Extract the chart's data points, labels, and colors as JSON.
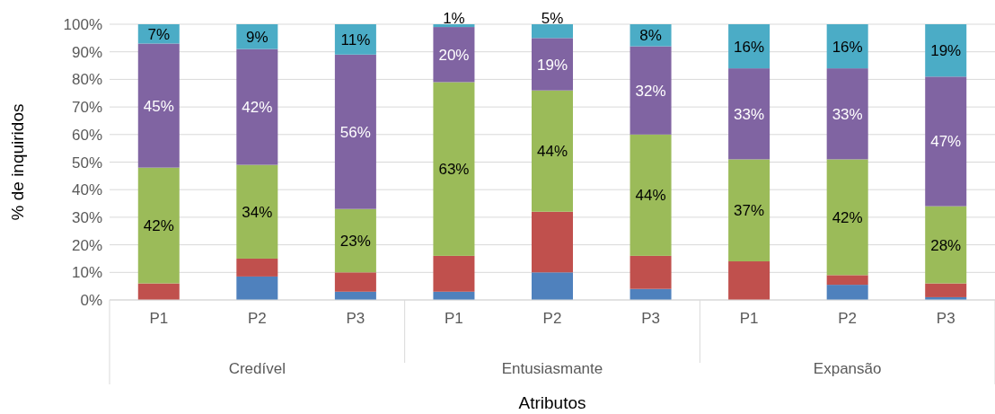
{
  "chart_data": {
    "type": "bar",
    "stacked": true,
    "xlabel": "Atributos",
    "ylabel": "% de inquiridos",
    "categories": [
      "P1",
      "P2",
      "P3",
      "P1",
      "P2",
      "P3",
      "P1",
      "P2",
      "P3"
    ],
    "annotations": [
      "Credível",
      "Entusiasmante",
      "Expansão"
    ],
    "series": [
      {
        "color": "#4f81bd",
        "values": [
          0,
          8.5,
          3,
          3,
          10,
          4,
          0,
          5.5,
          1
        ]
      },
      {
        "color": "#c0504d",
        "values": [
          6,
          6.5,
          7,
          13,
          22,
          12,
          14,
          3.5,
          5
        ]
      },
      {
        "color": "#9bbb59",
        "values": [
          42,
          34,
          23,
          63,
          44,
          44,
          37,
          42,
          28
        ],
        "value_labels": [
          "42%",
          "34%",
          "23%",
          "63%",
          "44%",
          "44%",
          "37%",
          "42%",
          "28%"
        ]
      },
      {
        "color": "#8064a2",
        "values": [
          45,
          42,
          56,
          20,
          19,
          32,
          33,
          33,
          47
        ],
        "value_labels": [
          "45%",
          "42%",
          "56%",
          "20%",
          "19%",
          "32%",
          "33%",
          "33%",
          "47%"
        ]
      },
      {
        "color": "#4bacc6",
        "values": [
          7,
          9,
          11,
          1,
          5,
          8,
          16,
          16,
          19
        ],
        "value_labels": [
          "7%",
          "9%",
          "11%",
          "1%",
          "5%",
          "8%",
          "16%",
          "16%",
          "19%"
        ]
      }
    ],
    "ylim": [
      0,
      100
    ],
    "yticks": [
      {
        "value": 0,
        "label": "0%"
      },
      {
        "value": 10,
        "label": "10%"
      },
      {
        "value": 20,
        "label": "20%"
      },
      {
        "value": 30,
        "label": "30%"
      },
      {
        "value": 40,
        "label": "40%"
      },
      {
        "value": 50,
        "label": "50%"
      },
      {
        "value": 60,
        "label": "60%"
      },
      {
        "value": 70,
        "label": "70%"
      },
      {
        "value": 80,
        "label": "80%"
      },
      {
        "value": 90,
        "label": "90%"
      },
      {
        "value": 100,
        "label": "100%"
      }
    ],
    "grid": "y"
  }
}
